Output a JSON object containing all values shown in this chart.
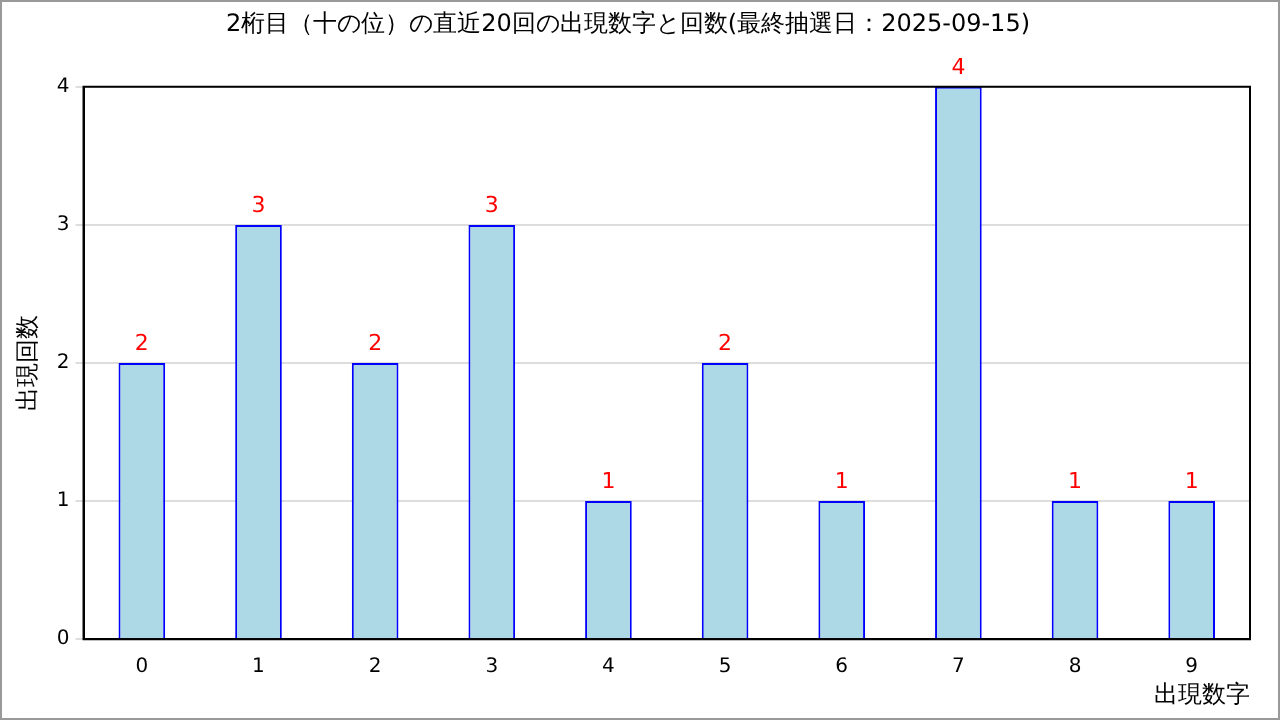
{
  "chart_data": {
    "type": "bar",
    "title": "2桁目（十の位）の直近20回の出現数字と回数(最終抽選日：2025-09-15)",
    "xlabel": "出現数字",
    "ylabel": "出現回数",
    "categories": [
      "0",
      "1",
      "2",
      "3",
      "4",
      "5",
      "6",
      "7",
      "8",
      "9"
    ],
    "values": [
      2,
      3,
      2,
      3,
      1,
      2,
      1,
      4,
      1,
      1
    ],
    "color": "#add8e6",
    "ylim": [
      0,
      4
    ],
    "yticks": [
      0,
      1,
      2,
      3,
      4
    ],
    "grid": "y",
    "data_labels": true
  }
}
